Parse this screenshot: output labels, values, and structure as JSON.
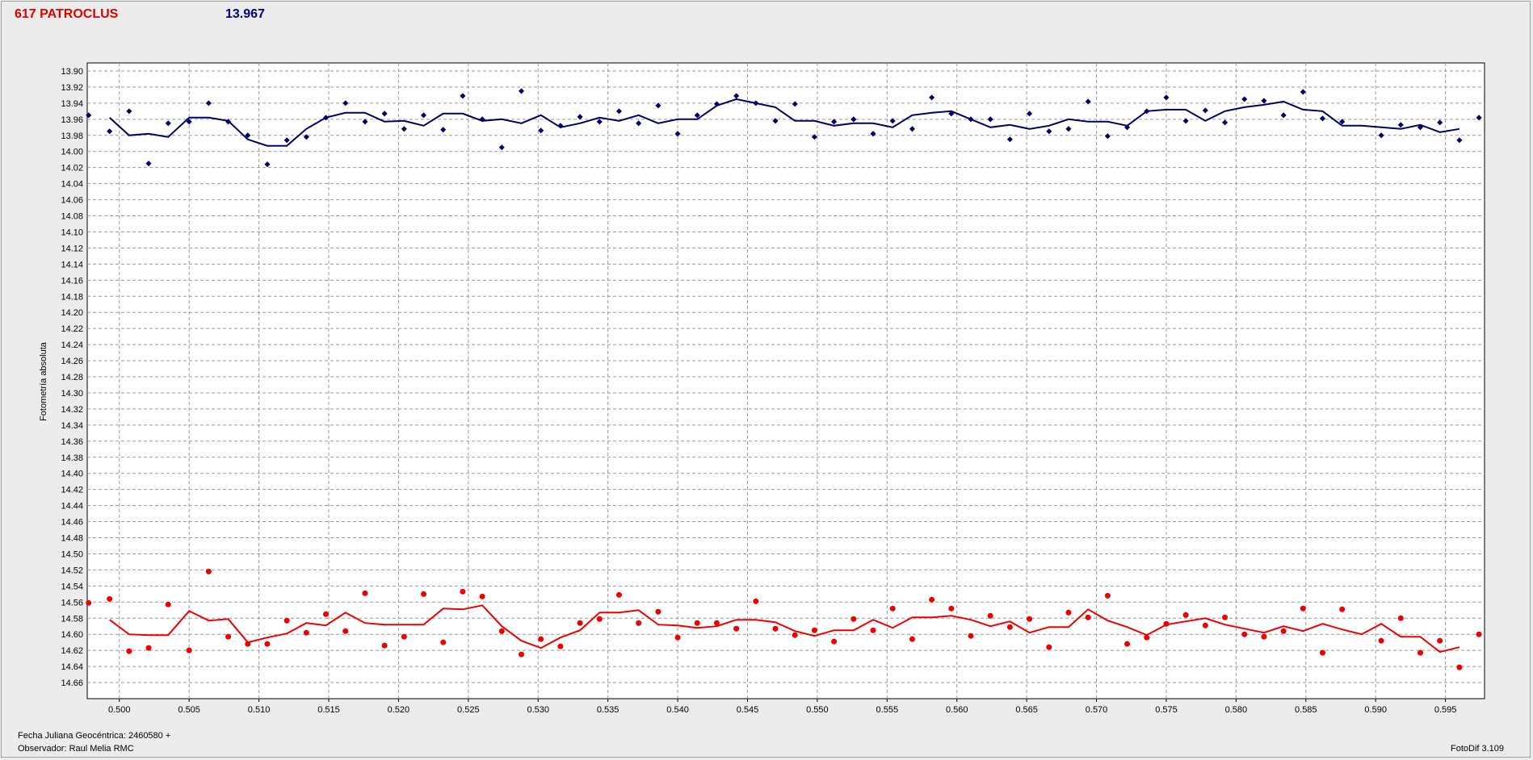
{
  "header": {
    "object_name": "617 PATROCLUS",
    "magnitude": "13.967"
  },
  "footer": {
    "date_label": "Fecha Juliana Geocéntrica: 2460580 +",
    "observer": "Observador: Raul Melia RMC",
    "software": "FotoDif 3.109"
  },
  "colors": {
    "series_blue": "#000066",
    "series_red": "#ee0000",
    "header_red": "#e00000",
    "header_blue": "#000080",
    "background": "#ececec",
    "plot_background": "#ffffff"
  },
  "chart_data": {
    "type": "scatter",
    "ylabel": "Fotometría absoluta",
    "xlabel": "",
    "xlim": [
      0.4977,
      0.5978
    ],
    "ylim": [
      13.89,
      14.68
    ],
    "y_inverted": true,
    "grid": true,
    "x_ticks": [
      "0.500",
      "0.505",
      "0.510",
      "0.515",
      "0.520",
      "0.525",
      "0.530",
      "0.535",
      "0.540",
      "0.545",
      "0.550",
      "0.555",
      "0.560",
      "0.565",
      "0.570",
      "0.575",
      "0.580",
      "0.585",
      "0.590",
      "0.595"
    ],
    "y_ticks": [
      "13.90",
      "13.92",
      "13.94",
      "13.96",
      "13.98",
      "14.00",
      "14.02",
      "14.04",
      "14.06",
      "14.08",
      "14.10",
      "14.12",
      "14.14",
      "14.16",
      "14.18",
      "14.20",
      "14.22",
      "14.24",
      "14.26",
      "14.28",
      "14.30",
      "14.32",
      "14.34",
      "14.36",
      "14.38",
      "14.40",
      "14.42",
      "14.44",
      "14.46",
      "14.48",
      "14.50",
      "14.52",
      "14.54",
      "14.56",
      "14.58",
      "14.60",
      "14.62",
      "14.64",
      "14.66"
    ],
    "series": [
      {
        "color": "#000066",
        "points": [
          [
            0.4978,
            13.955
          ],
          [
            0.4993,
            13.975
          ],
          [
            0.5007,
            13.95
          ],
          [
            0.5021,
            14.015
          ],
          [
            0.5035,
            13.965
          ],
          [
            0.505,
            13.963
          ],
          [
            0.5064,
            13.94
          ],
          [
            0.5078,
            13.963
          ],
          [
            0.5092,
            13.98
          ],
          [
            0.5106,
            14.016
          ],
          [
            0.512,
            13.986
          ],
          [
            0.5134,
            13.982
          ],
          [
            0.5148,
            13.958
          ],
          [
            0.5162,
            13.94
          ],
          [
            0.5176,
            13.963
          ],
          [
            0.519,
            13.953
          ],
          [
            0.5204,
            13.972
          ],
          [
            0.5218,
            13.955
          ],
          [
            0.5232,
            13.973
          ],
          [
            0.5246,
            13.931
          ],
          [
            0.526,
            13.96
          ],
          [
            0.5274,
            13.995
          ],
          [
            0.5288,
            13.925
          ],
          [
            0.5302,
            13.974
          ],
          [
            0.5316,
            13.968
          ],
          [
            0.533,
            13.957
          ],
          [
            0.5344,
            13.963
          ],
          [
            0.5358,
            13.95
          ],
          [
            0.5372,
            13.965
          ],
          [
            0.5386,
            13.943
          ],
          [
            0.54,
            13.978
          ],
          [
            0.5414,
            13.955
          ],
          [
            0.5428,
            13.941
          ],
          [
            0.5442,
            13.931
          ],
          [
            0.5456,
            13.94
          ],
          [
            0.547,
            13.962
          ],
          [
            0.5484,
            13.941
          ],
          [
            0.5498,
            13.982
          ],
          [
            0.5512,
            13.963
          ],
          [
            0.5526,
            13.96
          ],
          [
            0.554,
            13.978
          ],
          [
            0.5554,
            13.962
          ],
          [
            0.5568,
            13.972
          ],
          [
            0.5582,
            13.933
          ],
          [
            0.5596,
            13.953
          ],
          [
            0.561,
            13.96
          ],
          [
            0.5624,
            13.96
          ],
          [
            0.5638,
            13.985
          ],
          [
            0.5652,
            13.953
          ],
          [
            0.5666,
            13.975
          ],
          [
            0.568,
            13.972
          ],
          [
            0.5694,
            13.938
          ],
          [
            0.5708,
            13.981
          ],
          [
            0.5722,
            13.97
          ],
          [
            0.5736,
            13.95
          ],
          [
            0.575,
            13.933
          ],
          [
            0.5764,
            13.962
          ],
          [
            0.5778,
            13.949
          ],
          [
            0.5792,
            13.964
          ],
          [
            0.5806,
            13.935
          ],
          [
            0.582,
            13.937
          ],
          [
            0.5834,
            13.955
          ],
          [
            0.5848,
            13.926
          ],
          [
            0.5862,
            13.959
          ],
          [
            0.5876,
            13.963
          ],
          [
            0.5904,
            13.98
          ],
          [
            0.5918,
            13.967
          ],
          [
            0.5932,
            13.97
          ],
          [
            0.5946,
            13.964
          ],
          [
            0.596,
            13.986
          ],
          [
            0.5974,
            13.958
          ]
        ],
        "line": [
          [
            0.4993,
            13.958
          ],
          [
            0.5007,
            13.98
          ],
          [
            0.5021,
            13.978
          ],
          [
            0.5035,
            13.982
          ],
          [
            0.505,
            13.958
          ],
          [
            0.5064,
            13.958
          ],
          [
            0.5078,
            13.962
          ],
          [
            0.5092,
            13.985
          ],
          [
            0.5106,
            13.993
          ],
          [
            0.512,
            13.993
          ],
          [
            0.5134,
            13.972
          ],
          [
            0.5148,
            13.958
          ],
          [
            0.5162,
            13.952
          ],
          [
            0.5176,
            13.952
          ],
          [
            0.519,
            13.963
          ],
          [
            0.5204,
            13.962
          ],
          [
            0.5218,
            13.968
          ],
          [
            0.5232,
            13.953
          ],
          [
            0.5246,
            13.953
          ],
          [
            0.526,
            13.962
          ],
          [
            0.5274,
            13.96
          ],
          [
            0.5288,
            13.965
          ],
          [
            0.5302,
            13.955
          ],
          [
            0.5316,
            13.97
          ],
          [
            0.533,
            13.965
          ],
          [
            0.5344,
            13.958
          ],
          [
            0.5358,
            13.962
          ],
          [
            0.5372,
            13.955
          ],
          [
            0.5386,
            13.965
          ],
          [
            0.54,
            13.96
          ],
          [
            0.5414,
            13.96
          ],
          [
            0.5428,
            13.943
          ],
          [
            0.5442,
            13.935
          ],
          [
            0.5456,
            13.94
          ],
          [
            0.547,
            13.945
          ],
          [
            0.5484,
            13.962
          ],
          [
            0.5498,
            13.962
          ],
          [
            0.5512,
            13.968
          ],
          [
            0.5526,
            13.965
          ],
          [
            0.554,
            13.965
          ],
          [
            0.5554,
            13.97
          ],
          [
            0.5568,
            13.955
          ],
          [
            0.5582,
            13.952
          ],
          [
            0.5596,
            13.95
          ],
          [
            0.561,
            13.96
          ],
          [
            0.5624,
            13.97
          ],
          [
            0.5638,
            13.967
          ],
          [
            0.5652,
            13.972
          ],
          [
            0.5666,
            13.968
          ],
          [
            0.568,
            13.96
          ],
          [
            0.5694,
            13.963
          ],
          [
            0.5708,
            13.963
          ],
          [
            0.5722,
            13.968
          ],
          [
            0.5736,
            13.95
          ],
          [
            0.575,
            13.948
          ],
          [
            0.5764,
            13.948
          ],
          [
            0.5778,
            13.962
          ],
          [
            0.5792,
            13.95
          ],
          [
            0.5806,
            13.945
          ],
          [
            0.582,
            13.942
          ],
          [
            0.5834,
            13.938
          ],
          [
            0.5848,
            13.948
          ],
          [
            0.5862,
            13.95
          ],
          [
            0.5876,
            13.968
          ],
          [
            0.589,
            13.968
          ],
          [
            0.5904,
            13.97
          ],
          [
            0.5918,
            13.972
          ],
          [
            0.5932,
            13.967
          ],
          [
            0.5946,
            13.976
          ],
          [
            0.596,
            13.972
          ]
        ]
      },
      {
        "color": "#ee0000",
        "points": [
          [
            0.4978,
            14.561
          ],
          [
            0.4993,
            14.556
          ],
          [
            0.5007,
            14.621
          ],
          [
            0.5021,
            14.617
          ],
          [
            0.5035,
            14.563
          ],
          [
            0.505,
            14.62
          ],
          [
            0.5064,
            14.522
          ],
          [
            0.5078,
            14.603
          ],
          [
            0.5092,
            14.612
          ],
          [
            0.5106,
            14.612
          ],
          [
            0.512,
            14.583
          ],
          [
            0.5134,
            14.598
          ],
          [
            0.5148,
            14.575
          ],
          [
            0.5162,
            14.596
          ],
          [
            0.5176,
            14.549
          ],
          [
            0.519,
            14.614
          ],
          [
            0.5204,
            14.603
          ],
          [
            0.5218,
            14.55
          ],
          [
            0.5232,
            14.61
          ],
          [
            0.5246,
            14.547
          ],
          [
            0.526,
            14.553
          ],
          [
            0.5274,
            14.596
          ],
          [
            0.5288,
            14.625
          ],
          [
            0.5302,
            14.606
          ],
          [
            0.5316,
            14.615
          ],
          [
            0.533,
            14.586
          ],
          [
            0.5344,
            14.581
          ],
          [
            0.5358,
            14.551
          ],
          [
            0.5372,
            14.586
          ],
          [
            0.5386,
            14.572
          ],
          [
            0.54,
            14.604
          ],
          [
            0.5414,
            14.586
          ],
          [
            0.5428,
            14.586
          ],
          [
            0.5442,
            14.593
          ],
          [
            0.5456,
            14.559
          ],
          [
            0.547,
            14.593
          ],
          [
            0.5484,
            14.601
          ],
          [
            0.5498,
            14.595
          ],
          [
            0.5512,
            14.609
          ],
          [
            0.5526,
            14.581
          ],
          [
            0.554,
            14.595
          ],
          [
            0.5554,
            14.568
          ],
          [
            0.5568,
            14.606
          ],
          [
            0.5582,
            14.557
          ],
          [
            0.5596,
            14.568
          ],
          [
            0.561,
            14.602
          ],
          [
            0.5624,
            14.577
          ],
          [
            0.5638,
            14.591
          ],
          [
            0.5652,
            14.581
          ],
          [
            0.5666,
            14.616
          ],
          [
            0.568,
            14.573
          ],
          [
            0.5694,
            14.579
          ],
          [
            0.5708,
            14.552
          ],
          [
            0.5722,
            14.612
          ],
          [
            0.5736,
            14.604
          ],
          [
            0.575,
            14.587
          ],
          [
            0.5764,
            14.576
          ],
          [
            0.5778,
            14.589
          ],
          [
            0.5792,
            14.579
          ],
          [
            0.5806,
            14.6
          ],
          [
            0.582,
            14.603
          ],
          [
            0.5834,
            14.596
          ],
          [
            0.5848,
            14.568
          ],
          [
            0.5862,
            14.623
          ],
          [
            0.5876,
            14.569
          ],
          [
            0.5904,
            14.608
          ],
          [
            0.5918,
            14.58
          ],
          [
            0.5932,
            14.623
          ],
          [
            0.5946,
            14.608
          ],
          [
            0.596,
            14.641
          ],
          [
            0.5974,
            14.6
          ]
        ],
        "line": [
          [
            0.4993,
            14.582
          ],
          [
            0.5007,
            14.6
          ],
          [
            0.5021,
            14.601
          ],
          [
            0.5035,
            14.601
          ],
          [
            0.505,
            14.571
          ],
          [
            0.5064,
            14.583
          ],
          [
            0.5078,
            14.581
          ],
          [
            0.5092,
            14.61
          ],
          [
            0.5106,
            14.604
          ],
          [
            0.512,
            14.599
          ],
          [
            0.5134,
            14.586
          ],
          [
            0.5148,
            14.589
          ],
          [
            0.5162,
            14.573
          ],
          [
            0.5176,
            14.586
          ],
          [
            0.519,
            14.588
          ],
          [
            0.5204,
            14.588
          ],
          [
            0.5218,
            14.588
          ],
          [
            0.5232,
            14.568
          ],
          [
            0.5246,
            14.569
          ],
          [
            0.526,
            14.564
          ],
          [
            0.5274,
            14.59
          ],
          [
            0.5288,
            14.608
          ],
          [
            0.5302,
            14.617
          ],
          [
            0.5316,
            14.604
          ],
          [
            0.533,
            14.595
          ],
          [
            0.5344,
            14.573
          ],
          [
            0.5358,
            14.573
          ],
          [
            0.5372,
            14.57
          ],
          [
            0.5386,
            14.588
          ],
          [
            0.54,
            14.589
          ],
          [
            0.5414,
            14.592
          ],
          [
            0.5428,
            14.59
          ],
          [
            0.5442,
            14.582
          ],
          [
            0.5456,
            14.582
          ],
          [
            0.547,
            14.585
          ],
          [
            0.5484,
            14.596
          ],
          [
            0.5498,
            14.602
          ],
          [
            0.5512,
            14.595
          ],
          [
            0.5526,
            14.595
          ],
          [
            0.554,
            14.582
          ],
          [
            0.5554,
            14.592
          ],
          [
            0.5568,
            14.579
          ],
          [
            0.5582,
            14.579
          ],
          [
            0.5596,
            14.577
          ],
          [
            0.561,
            14.582
          ],
          [
            0.5624,
            14.59
          ],
          [
            0.5638,
            14.584
          ],
          [
            0.5652,
            14.598
          ],
          [
            0.5666,
            14.591
          ],
          [
            0.568,
            14.591
          ],
          [
            0.5694,
            14.569
          ],
          [
            0.5708,
            14.583
          ],
          [
            0.5722,
            14.591
          ],
          [
            0.5736,
            14.601
          ],
          [
            0.575,
            14.588
          ],
          [
            0.5764,
            14.584
          ],
          [
            0.5778,
            14.58
          ],
          [
            0.5792,
            14.588
          ],
          [
            0.5806,
            14.593
          ],
          [
            0.582,
            14.598
          ],
          [
            0.5834,
            14.59
          ],
          [
            0.5848,
            14.596
          ],
          [
            0.5862,
            14.587
          ],
          [
            0.5876,
            14.594
          ],
          [
            0.589,
            14.6
          ],
          [
            0.5904,
            14.587
          ],
          [
            0.5918,
            14.603
          ],
          [
            0.5932,
            14.603
          ],
          [
            0.5946,
            14.622
          ],
          [
            0.596,
            14.616
          ]
        ]
      }
    ]
  }
}
